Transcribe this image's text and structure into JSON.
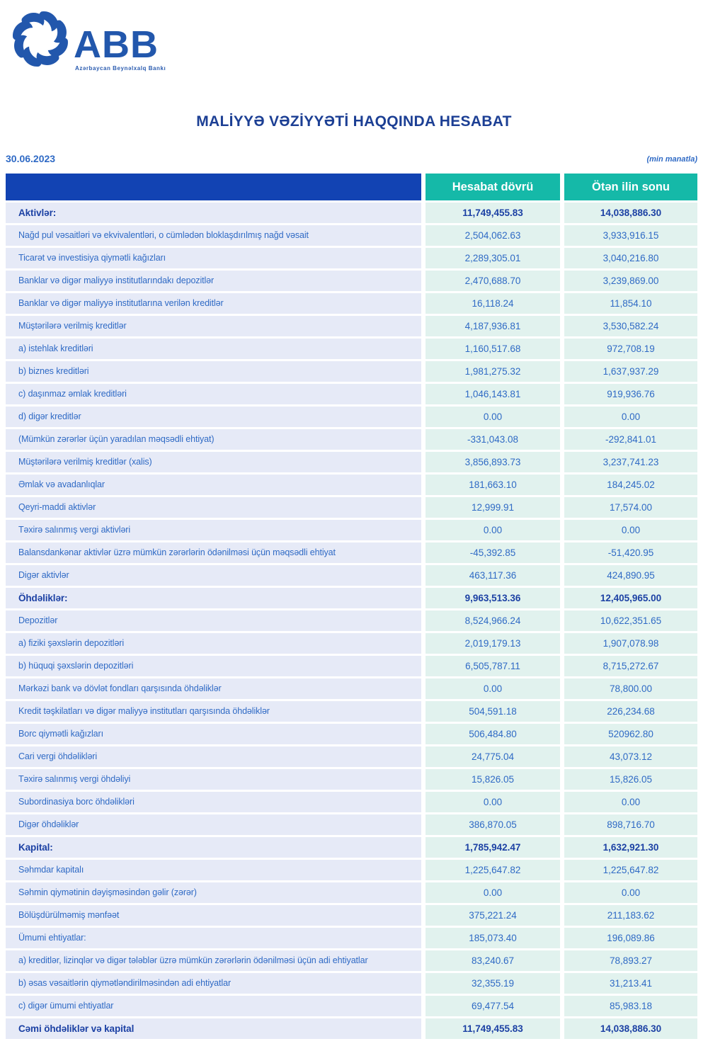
{
  "logo": {
    "abbr": "ABB",
    "tagline": "Azərbaycan Beynəlxalq Bankı",
    "brand_color": "#2257ac"
  },
  "title": "MALİYYƏ VƏZİYYƏTİ HAQQINDA HESABAT",
  "meta": {
    "date": "30.06.2023",
    "unit_note": "(min manatla)"
  },
  "colors": {
    "header_bar_blue": "#1243b3",
    "header_teal": "#15b9a8",
    "label_cell_bg": "#e6eaf7",
    "value_cell_bg": "#e1f2ee",
    "text_blue": "#2f6ac5",
    "bold_text_navy": "#1c41a4",
    "title_navy": "#1c3f94"
  },
  "table": {
    "columns": [
      "Hesabat dövrü",
      "Ötən ilin sonu"
    ],
    "rows": [
      {
        "label": "Aktivlər:",
        "current": "11,749,455.83",
        "previous": "14,038,886.30",
        "bold": true
      },
      {
        "label": "Nağd pul vəsaitləri və  ekvivalentləri, o cümlədən bloklaşdırılmış nağd vəsait",
        "current": "2,504,062.63",
        "previous": "3,933,916.15",
        "bold": false
      },
      {
        "label": "Ticarət və investisiya qiymətli kağızları",
        "current": "2,289,305.01",
        "previous": "3,040,216.80",
        "bold": false
      },
      {
        "label": "Banklar və digər maliyyə institutlarındakı depozitlər",
        "current": "2,470,688.70",
        "previous": "3,239,869.00",
        "bold": false
      },
      {
        "label": "Banklar və digər maliyyə institutlarına verilən kreditlər",
        "current": "16,118.24",
        "previous": "11,854.10",
        "bold": false
      },
      {
        "label": "Müştərilərə verilmiş kreditlər",
        "current": "4,187,936.81",
        "previous": "3,530,582.24",
        "bold": false
      },
      {
        "label": "a) istehlak kreditləri",
        "current": "1,160,517.68",
        "previous": "972,708.19",
        "bold": false
      },
      {
        "label": "b) biznes kreditləri",
        "current": "1,981,275.32",
        "previous": "1,637,937.29",
        "bold": false
      },
      {
        "label": "c) daşınmaz əmlak kreditləri",
        "current": "1,046,143.81",
        "previous": "919,936.76",
        "bold": false
      },
      {
        "label": "d) digər kreditlər",
        "current": "0.00",
        "previous": "0.00",
        "bold": false
      },
      {
        "label": "(Mümkün zərərlər üçün yaradılan məqsədli ehtiyat)",
        "current": "-331,043.08",
        "previous": "-292,841.01",
        "bold": false
      },
      {
        "label": "Müştərilərə verilmiş kreditlər (xalis)",
        "current": "3,856,893.73",
        "previous": "3,237,741.23",
        "bold": false
      },
      {
        "label": "Əmlak və avadanlıqlar",
        "current": "181,663.10",
        "previous": "184,245.02",
        "bold": false
      },
      {
        "label": "Qeyri-maddi aktivlər",
        "current": "12,999.91",
        "previous": "17,574.00",
        "bold": false
      },
      {
        "label": "Təxirə salınmış vergi aktivləri",
        "current": "0.00",
        "previous": "0.00",
        "bold": false
      },
      {
        "label": "Balansdankənar aktivlər üzrə mümkün zərərlərin ödənilməsi üçün məqsədli ehtiyat",
        "current": "-45,392.85",
        "previous": "-51,420.95",
        "bold": false
      },
      {
        "label": "Digər aktivlər",
        "current": "463,117.36",
        "previous": "424,890.95",
        "bold": false
      },
      {
        "label": "Öhdəliklər:",
        "current": "9,963,513.36",
        "previous": "12,405,965.00",
        "bold": true
      },
      {
        "label": "Depozitlər",
        "current": "8,524,966.24",
        "previous": "10,622,351.65",
        "bold": false
      },
      {
        "label": "a) fiziki şəxslərin depozitləri",
        "current": "2,019,179.13",
        "previous": "1,907,078.98",
        "bold": false
      },
      {
        "label": "b) hüquqi şəxslərin depozitləri",
        "current": "6,505,787.11",
        "previous": "8,715,272.67",
        "bold": false
      },
      {
        "label": "Mərkəzi bank və dövlət fondları qarşısında öhdəliklər",
        "current": "0.00",
        "previous": "78,800.00",
        "bold": false
      },
      {
        "label": "Kredit təşkilatları və digər maliyyə institutları qarşısında öhdəliklər",
        "current": "504,591.18",
        "previous": "226,234.68",
        "bold": false
      },
      {
        "label": "Borc qiymətli kağızları",
        "current": "506,484.80",
        "previous": "520962.80",
        "bold": false
      },
      {
        "label": "Cari vergi öhdəlikləri",
        "current": "24,775.04",
        "previous": "43,073.12",
        "bold": false
      },
      {
        "label": "Təxirə salınmış vergi öhdəliyi",
        "current": "15,826.05",
        "previous": "15,826.05",
        "bold": false
      },
      {
        "label": "Subordinasiya borc öhdəlikləri",
        "current": "0.00",
        "previous": "0.00",
        "bold": false
      },
      {
        "label": "Digər öhdəliklər",
        "current": "386,870.05",
        "previous": "898,716.70",
        "bold": false
      },
      {
        "label": "Kapital:",
        "current": "1,785,942.47",
        "previous": "1,632,921.30",
        "bold": true
      },
      {
        "label": "Səhmdar kapitalı",
        "current": "1,225,647.82",
        "previous": "1,225,647.82",
        "bold": false
      },
      {
        "label": "Səhmin qiymətinin dəyişməsindən gəlir (zərər)",
        "current": "0.00",
        "previous": "0.00",
        "bold": false
      },
      {
        "label": "Bölüşdürülməmiş mənfəət",
        "current": "375,221.24",
        "previous": "211,183.62",
        "bold": false
      },
      {
        "label": "Ümumi ehtiyatlar:",
        "current": "185,073.40",
        "previous": "196,089.86",
        "bold": false
      },
      {
        "label": "a) kreditlər, lizinqlər və digər tələblər üzrə mümkün zərərlərin ödənilməsi üçün adi ehtiyatlar",
        "current": "83,240.67",
        "previous": "78,893.27",
        "bold": false
      },
      {
        "label": "b) əsas vəsaitlərin qiymətləndirilməsindən adi ehtiyatlar",
        "current": "32,355.19",
        "previous": "31,213.41",
        "bold": false
      },
      {
        "label": "c) digər ümumi ehtiyatlar",
        "current": "69,477.54",
        "previous": "85,983.18",
        "bold": false
      },
      {
        "label": "Cəmi öhdəliklər və kapital",
        "current": "11,749,455.83",
        "previous": "14,038,886.30",
        "bold": true
      }
    ]
  }
}
